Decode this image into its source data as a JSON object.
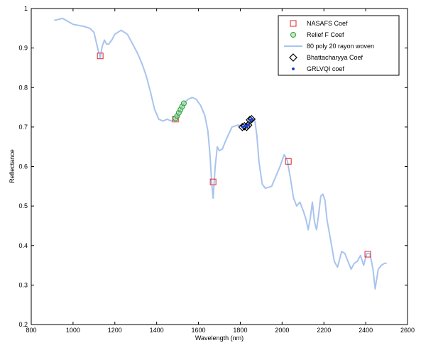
{
  "chart_data": {
    "type": "line",
    "xlabel": "Wavelength (nm)",
    "ylabel": "Reflectance",
    "xlim": [
      800,
      2600
    ],
    "ylim": [
      0.2,
      1.0
    ],
    "x_ticks": [
      800,
      1000,
      1200,
      1400,
      1600,
      1800,
      2000,
      2200,
      2400,
      2600
    ],
    "y_ticks": [
      0.2,
      0.3,
      0.4,
      0.5,
      0.6,
      0.7,
      0.8,
      0.9,
      1.0
    ],
    "x_tick_labels": [
      "800",
      "1000",
      "1200",
      "1400",
      "1600",
      "1800",
      "2000",
      "2200",
      "2400",
      "2600"
    ],
    "y_tick_labels": [
      "0.2",
      "0.3",
      "0.4",
      "0.5",
      "0.6",
      "0.7",
      "0.8",
      "0.9",
      "1"
    ],
    "grid": false,
    "legend_position": "top-right",
    "series": [
      {
        "name": "80 poly 20 rayon woven",
        "kind": "line",
        "color": "#a8c4ee",
        "x": [
          910,
          950,
          1000,
          1050,
          1080,
          1100,
          1120,
          1130,
          1140,
          1150,
          1160,
          1170,
          1185,
          1200,
          1230,
          1260,
          1290,
          1310,
          1330,
          1350,
          1370,
          1390,
          1410,
          1430,
          1450,
          1470,
          1490,
          1510,
          1530,
          1550,
          1570,
          1590,
          1610,
          1630,
          1645,
          1655,
          1663,
          1670,
          1680,
          1690,
          1700,
          1715,
          1730,
          1760,
          1790,
          1820,
          1840,
          1860,
          1870,
          1880,
          1890,
          1905,
          1920,
          1950,
          1990,
          2010,
          2025,
          2040,
          2055,
          2070,
          2085,
          2100,
          2115,
          2125,
          2135,
          2145,
          2155,
          2165,
          2175,
          2185,
          2195,
          2205,
          2215,
          2230,
          2250,
          2265,
          2285,
          2300,
          2315,
          2330,
          2345,
          2360,
          2375,
          2390,
          2405,
          2420,
          2435,
          2445,
          2460,
          2475,
          2490,
          2500
        ],
        "y": [
          0.97,
          0.975,
          0.96,
          0.955,
          0.95,
          0.94,
          0.895,
          0.875,
          0.905,
          0.92,
          0.91,
          0.91,
          0.92,
          0.935,
          0.945,
          0.935,
          0.905,
          0.885,
          0.86,
          0.83,
          0.79,
          0.745,
          0.72,
          0.715,
          0.72,
          0.715,
          0.72,
          0.74,
          0.76,
          0.77,
          0.775,
          0.77,
          0.755,
          0.73,
          0.69,
          0.63,
          0.56,
          0.52,
          0.6,
          0.65,
          0.64,
          0.645,
          0.665,
          0.7,
          0.705,
          0.7,
          0.71,
          0.72,
          0.715,
          0.675,
          0.61,
          0.555,
          0.545,
          0.55,
          0.6,
          0.63,
          0.615,
          0.57,
          0.52,
          0.5,
          0.51,
          0.49,
          0.465,
          0.44,
          0.47,
          0.51,
          0.46,
          0.44,
          0.48,
          0.525,
          0.53,
          0.515,
          0.465,
          0.42,
          0.36,
          0.345,
          0.385,
          0.38,
          0.36,
          0.34,
          0.355,
          0.36,
          0.375,
          0.35,
          0.38,
          0.38,
          0.34,
          0.29,
          0.34,
          0.35,
          0.355,
          0.355
        ]
      },
      {
        "name": "NASAFS Coef",
        "kind": "markers",
        "marker": "square",
        "color": "#e0242a",
        "x": [
          1130,
          1490,
          1670,
          2030,
          2410
        ],
        "y": [
          0.88,
          0.72,
          0.561,
          0.613,
          0.378
        ]
      },
      {
        "name": "Relief F Coef",
        "kind": "markers",
        "marker": "circle",
        "color": "#2aa02a",
        "x": [
          1490,
          1498,
          1506,
          1514,
          1522,
          1530
        ],
        "y": [
          0.722,
          0.728,
          0.736,
          0.744,
          0.752,
          0.76
        ]
      },
      {
        "name": "Bhattacharyya Coef",
        "kind": "markers",
        "marker": "diamond",
        "color": "#000000",
        "x": [
          1810,
          1820,
          1830,
          1838,
          1846,
          1854
        ],
        "y": [
          0.7,
          0.702,
          0.7,
          0.705,
          0.718,
          0.72
        ]
      },
      {
        "name": "GRLVQI coef",
        "kind": "markers",
        "marker": "dot",
        "color": "#1f3fd0",
        "x": [
          1812,
          1822,
          1832,
          1840,
          1848,
          1856
        ],
        "y": [
          0.7,
          0.703,
          0.702,
          0.706,
          0.718,
          0.72
        ]
      }
    ],
    "legend_order": [
      "NASAFS Coef",
      "Relief F Coef",
      "80 poly 20 rayon woven",
      "Bhattacharyya Coef",
      "GRLVQI coef"
    ]
  }
}
